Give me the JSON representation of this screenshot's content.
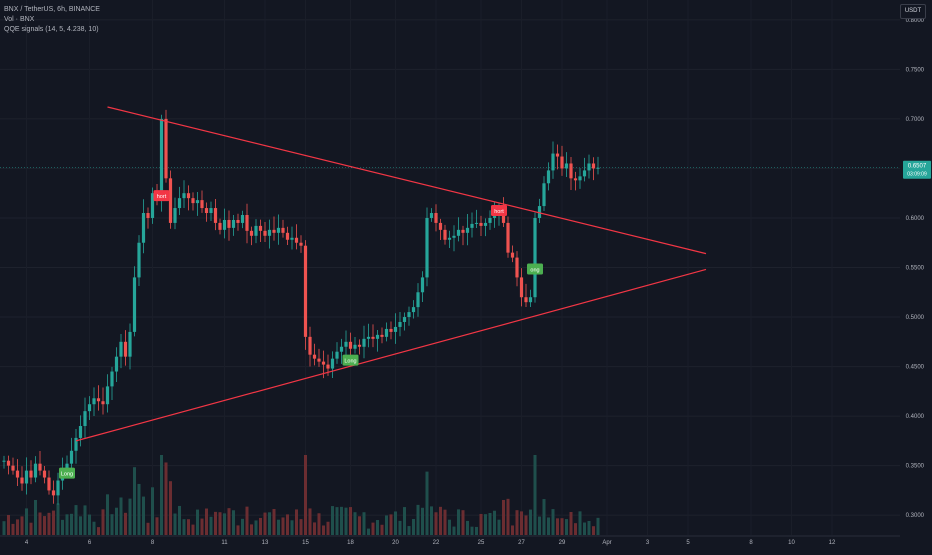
{
  "header": {
    "symbol_line": "BNX / TetherUS, 6h, BINANCE",
    "volume_line": "Vol · BNX",
    "indicator_line": "QQE signals (14, 5, 4.238, 10)"
  },
  "currency_button": "USDT",
  "price_badge": {
    "price": "0.6507",
    "countdown": "03:09:09"
  },
  "colors": {
    "background": "#131722",
    "up": "#26a69a",
    "down": "#ef5350",
    "trendline": "#f23645",
    "long_label": "#4caf50",
    "short_label": "#f23645"
  },
  "chart_data": {
    "type": "candlestick",
    "title": "BNX / TetherUS, 6h, BINANCE",
    "ylim": [
      0.28,
      0.82
    ],
    "y_ticks": [
      "0.8000",
      "0.7500",
      "0.7000",
      "0.6500",
      "0.6000",
      "0.5500",
      "0.5000",
      "0.4500",
      "0.4000",
      "0.3500",
      "0.3000"
    ],
    "x_ticks": [
      "4",
      "6",
      "8",
      "11",
      "13",
      "15",
      "18",
      "20",
      "22",
      "25",
      "27",
      "29",
      "Apr",
      "3",
      "5",
      "8",
      "10",
      "12"
    ],
    "last_price": 0.6507,
    "closes": [
      0.355,
      0.35,
      0.345,
      0.338,
      0.332,
      0.345,
      0.338,
      0.352,
      0.345,
      0.338,
      0.325,
      0.32,
      0.335,
      0.345,
      0.352,
      0.365,
      0.378,
      0.39,
      0.405,
      0.412,
      0.418,
      0.415,
      0.412,
      0.43,
      0.445,
      0.46,
      0.475,
      0.46,
      0.485,
      0.54,
      0.575,
      0.605,
      0.6,
      0.625,
      0.62,
      0.7,
      0.64,
      0.595,
      0.61,
      0.62,
      0.625,
      0.62,
      0.615,
      0.618,
      0.61,
      0.605,
      0.61,
      0.595,
      0.588,
      0.598,
      0.59,
      0.598,
      0.595,
      0.603,
      0.587,
      0.582,
      0.592,
      0.587,
      0.582,
      0.588,
      0.585,
      0.59,
      0.585,
      0.578,
      0.58,
      0.575,
      0.572,
      0.48,
      0.462,
      0.458,
      0.455,
      0.452,
      0.448,
      0.458,
      0.465,
      0.47,
      0.475,
      0.468,
      0.472,
      0.47,
      0.478,
      0.48,
      0.478,
      0.482,
      0.48,
      0.488,
      0.485,
      0.49,
      0.495,
      0.5,
      0.505,
      0.51,
      0.525,
      0.54,
      0.6,
      0.605,
      0.595,
      0.588,
      0.578,
      0.58,
      0.582,
      0.588,
      0.585,
      0.59,
      0.594,
      0.595,
      0.592,
      0.595,
      0.6,
      0.603,
      0.61,
      0.595,
      0.565,
      0.56,
      0.54,
      0.52,
      0.515,
      0.52,
      0.6,
      0.612,
      0.635,
      0.648,
      0.665,
      0.662,
      0.65,
      0.655,
      0.64,
      0.638,
      0.642,
      0.648,
      0.655,
      0.65,
      0.6507
    ],
    "volume_range": [
      0,
      1
    ],
    "annotations": [
      {
        "text": "Long",
        "x_index": 14,
        "y": 0.342
      },
      {
        "text": "hort",
        "x_index": 35,
        "y": 0.622
      },
      {
        "text": "Long",
        "x_index": 77,
        "y": 0.456
      },
      {
        "text": "hort",
        "x_index": 110,
        "y": 0.607
      },
      {
        "text": "ong",
        "x_index": 118,
        "y": 0.548
      }
    ],
    "trendlines": [
      {
        "from": {
          "x_index": 23,
          "y": 0.712
        },
        "to": {
          "x_index": 156,
          "y": 0.564
        }
      },
      {
        "from": {
          "x_index": 16,
          "y": 0.375
        },
        "to": {
          "x_index": 156,
          "y": 0.548
        }
      }
    ]
  }
}
